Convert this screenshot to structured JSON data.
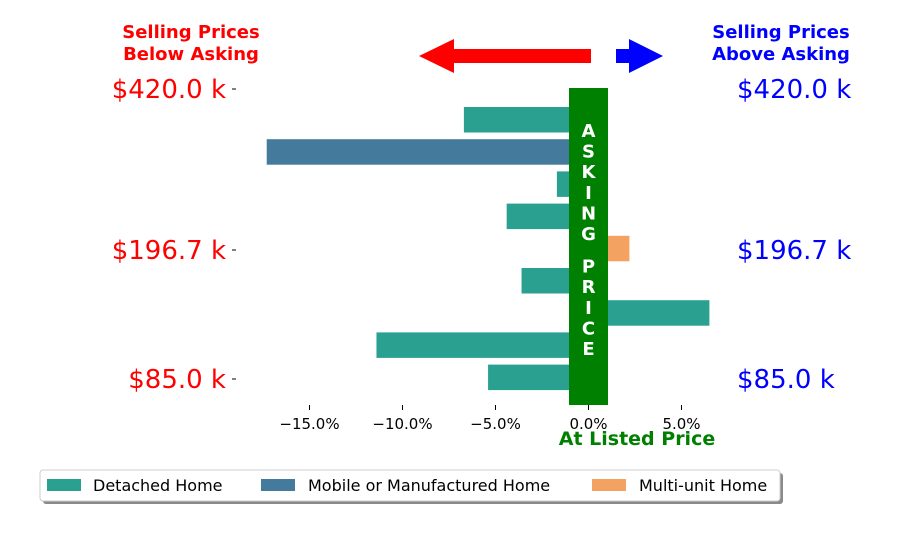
{
  "header": {
    "left_title": [
      "Selling Prices",
      "Below Asking"
    ],
    "right_title": [
      "Selling Prices",
      "Above Asking"
    ],
    "left_color": "#ff0000",
    "right_color": "#0000ff"
  },
  "asking_band": {
    "label": "ASKING PRICE",
    "color": "#008000",
    "bottom_label": "At Listed Price"
  },
  "y_labels": [
    "$420.0 k",
    "$196.7 k",
    "$85.0 k"
  ],
  "legend": [
    {
      "label": "Detached Home",
      "color": "#2aa190"
    },
    {
      "label": "Mobile or Manufactured Home",
      "color": "#447b9c"
    },
    {
      "label": "Multi-unit Home",
      "color": "#f4a261"
    }
  ],
  "chart_data": {
    "type": "bar",
    "orientation": "horizontal",
    "x_ticks": [
      "−15.0%",
      "−10.0%",
      "−5.0%",
      "0.0%",
      "5.0%"
    ],
    "x_tick_values": [
      -15,
      -10,
      -5,
      0,
      5
    ],
    "xlim": [
      -19.5,
      7.5
    ],
    "bars": [
      {
        "type": "Detached Home",
        "value": -6.7
      },
      {
        "type": "Mobile or Manufactured Home",
        "value": -17.3
      },
      {
        "type": "Detached Home",
        "value": -1.7
      },
      {
        "type": "Detached Home",
        "value": -4.4
      },
      {
        "type": "Multi-unit Home",
        "value": 2.2
      },
      {
        "type": "Detached Home",
        "value": -3.6
      },
      {
        "type": "Detached Home",
        "value": 6.5
      },
      {
        "type": "Detached Home",
        "value": -11.4
      },
      {
        "type": "Detached Home",
        "value": -5.4
      }
    ]
  }
}
